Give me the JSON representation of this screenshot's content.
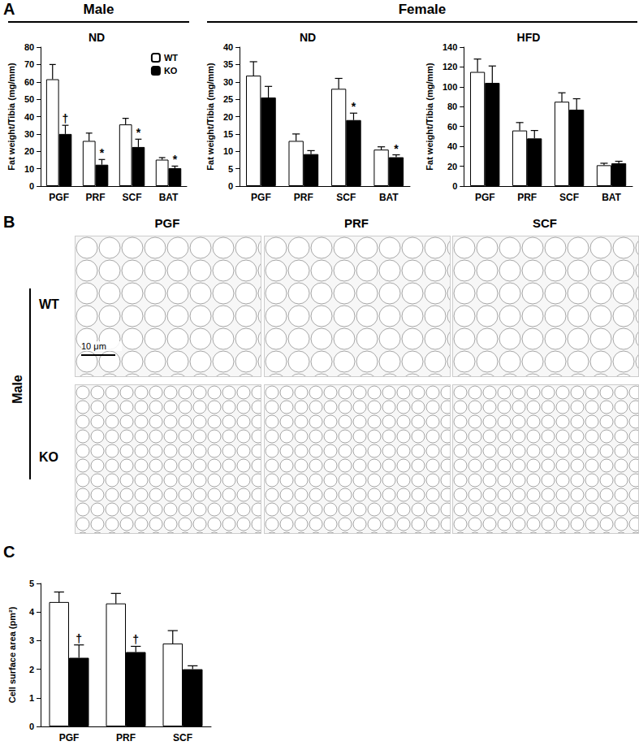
{
  "chart_data": [
    {
      "type": "bar",
      "title": "ND",
      "y_label": "Fat weight/Tibia (mg/mm)",
      "categories": [
        "PGF",
        "PRF",
        "SCF",
        "BAT"
      ],
      "series": [
        {
          "name": "WT",
          "color": "#ffffff",
          "values": [
            61.5,
            26,
            35.5,
            15.2
          ],
          "errors": [
            8.5,
            4.5,
            3.5,
            1.2
          ],
          "significance": [
            null,
            null,
            null,
            null
          ]
        },
        {
          "name": "KO",
          "color": "#000000",
          "values": [
            30,
            12.3,
            22.5,
            10.3
          ],
          "errors": [
            5,
            3,
            4.5,
            1.2
          ],
          "significance": [
            "†",
            "*",
            "*",
            "*"
          ]
        }
      ],
      "ylim": [
        0,
        80
      ],
      "yticks": [
        0,
        10,
        20,
        30,
        40,
        50,
        60,
        70,
        80
      ],
      "grid": false,
      "legend": "top-right"
    },
    {
      "type": "bar",
      "title": "ND",
      "y_label": "Fat weight/Tibia (mg/mm)",
      "categories": [
        "PGF",
        "PRF",
        "SCF",
        "BAT"
      ],
      "series": [
        {
          "name": "WT",
          "color": "#ffffff",
          "values": [
            31.8,
            13,
            28,
            10.5
          ],
          "errors": [
            4,
            2,
            3,
            0.8
          ],
          "significance": [
            null,
            null,
            null,
            null
          ]
        },
        {
          "name": "KO",
          "color": "#000000",
          "values": [
            25.5,
            9.2,
            19,
            8.3
          ],
          "errors": [
            3.2,
            1,
            2,
            0.7
          ],
          "significance": [
            null,
            null,
            "*",
            "*"
          ]
        }
      ],
      "ylim": [
        0,
        40
      ],
      "yticks": [
        0,
        5,
        10,
        15,
        20,
        25,
        30,
        35,
        40
      ],
      "grid": false
    },
    {
      "type": "bar",
      "title": "HFD",
      "y_label": "Fat weight/Tibia (mg/mm)",
      "categories": [
        "PGF",
        "PRF",
        "SCF",
        "BAT"
      ],
      "series": [
        {
          "name": "WT",
          "color": "#ffffff",
          "values": [
            115,
            56,
            85,
            21
          ],
          "errors": [
            13,
            8,
            9,
            2
          ],
          "significance": [
            null,
            null,
            null,
            null
          ]
        },
        {
          "name": "KO",
          "color": "#000000",
          "values": [
            104,
            48,
            77,
            23
          ],
          "errors": [
            17,
            8,
            11,
            2
          ],
          "significance": [
            null,
            null,
            null,
            null
          ]
        }
      ],
      "ylim": [
        0,
        140
      ],
      "yticks": [
        0,
        20,
        40,
        60,
        80,
        100,
        120,
        140
      ],
      "grid": false
    },
    {
      "type": "bar",
      "y_label": "Cell surface area (pm²)",
      "categories": [
        "PGF",
        "PRF",
        "SCF"
      ],
      "series": [
        {
          "name": "WT",
          "color": "#ffffff",
          "values": [
            4.35,
            4.3,
            2.9
          ],
          "errors": [
            0.35,
            0.35,
            0.45
          ],
          "significance": [
            null,
            null,
            null
          ]
        },
        {
          "name": "KO",
          "color": "#000000",
          "values": [
            2.4,
            2.6,
            2.0
          ],
          "errors": [
            0.45,
            0.2,
            0.12
          ],
          "significance": [
            "†",
            "†",
            null
          ]
        }
      ],
      "ylim": [
        0,
        5
      ],
      "yticks": [
        0,
        1,
        2,
        3,
        4,
        5
      ],
      "grid": false
    }
  ],
  "figure": {
    "panel_labels": [
      "A",
      "B",
      "C"
    ],
    "group_headers": [
      "Male",
      "Female"
    ],
    "micrographs": {
      "group": "Male",
      "rows": [
        "WT",
        "KO"
      ],
      "columns": [
        "PGF",
        "PRF",
        "SCF"
      ],
      "scale_bar": "10 μm"
    }
  }
}
